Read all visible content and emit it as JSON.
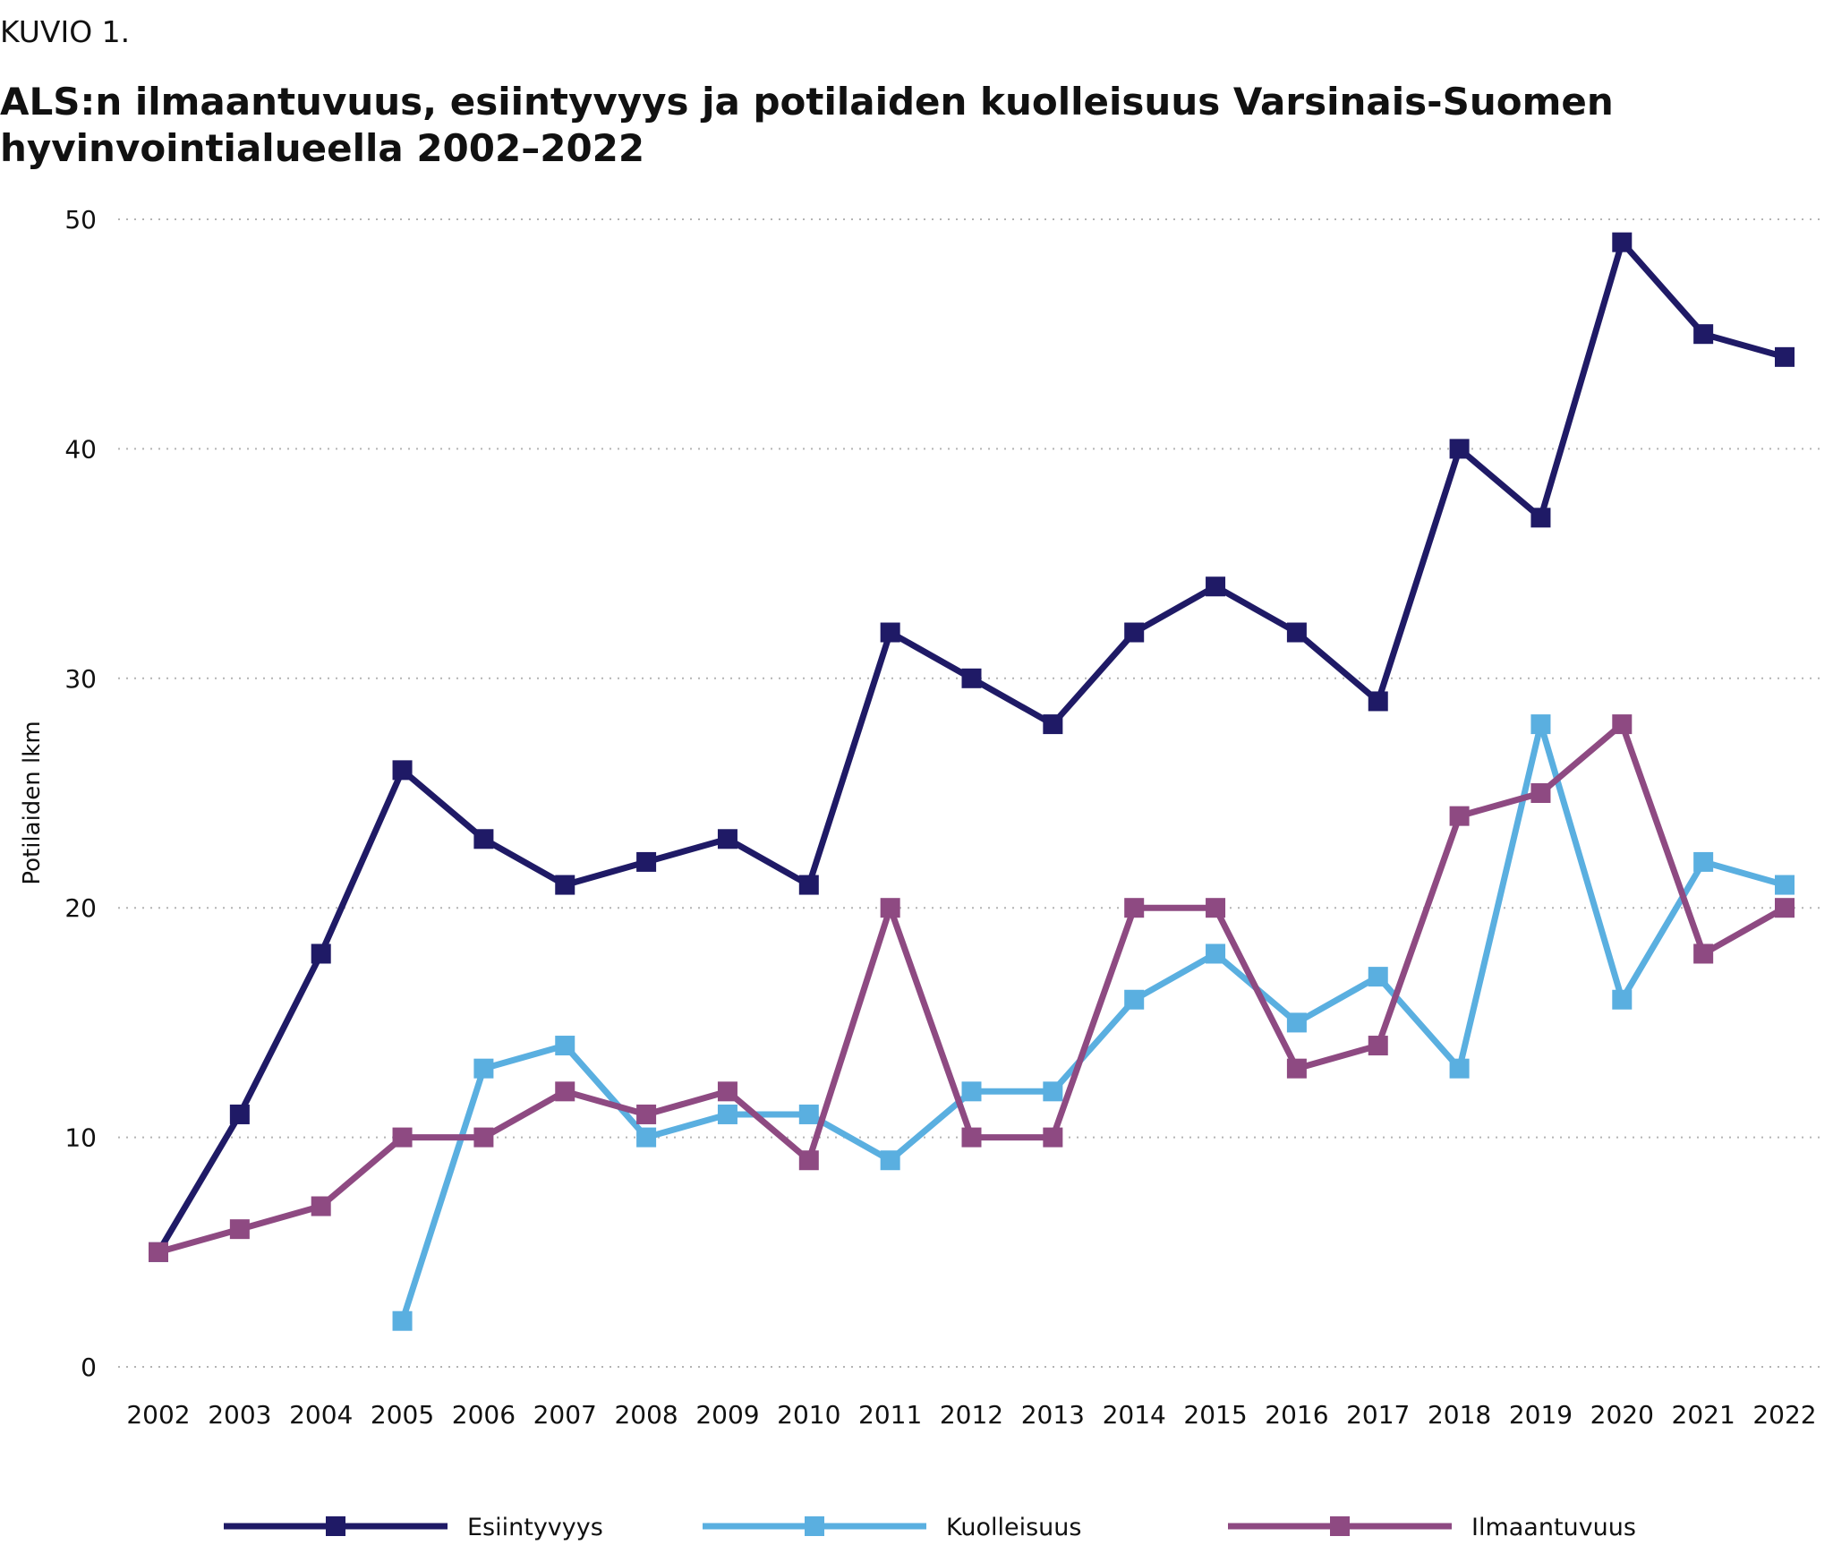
{
  "figure_label": "KUVIO 1.",
  "chart_data": {
    "type": "line",
    "title": "ALS:n ilmaantuvuus, esiintyvyys ja potilaiden kuolleisuus Varsinais-Suomen hyvinvointialueella 2002–2022",
    "xlabel": "",
    "ylabel": "Potilaiden lkm",
    "ylim": [
      0,
      50
    ],
    "yticks": [
      0,
      10,
      20,
      30,
      40,
      50
    ],
    "grid": "horizontal dotted",
    "legend_position": "bottom",
    "categories": [
      "2002",
      "2003",
      "2004",
      "2005",
      "2006",
      "2007",
      "2008",
      "2009",
      "2010",
      "2011",
      "2012",
      "2013",
      "2014",
      "2015",
      "2016",
      "2017",
      "2018",
      "2019",
      "2020",
      "2021",
      "2022"
    ],
    "series": [
      {
        "name": "Esiintyvyys",
        "color": "#1f1a66",
        "values": [
          5,
          11,
          18,
          26,
          23,
          21,
          22,
          23,
          21,
          32,
          30,
          28,
          32,
          34,
          32,
          29,
          40,
          37,
          49,
          45,
          44
        ]
      },
      {
        "name": "Kuolleisuus",
        "color": "#5aafe0",
        "values": [
          null,
          null,
          null,
          2,
          13,
          14,
          10,
          11,
          11,
          9,
          12,
          12,
          16,
          18,
          15,
          17,
          13,
          28,
          16,
          22,
          21
        ]
      },
      {
        "name": "Ilmaantuvuus",
        "color": "#8e4a82",
        "values": [
          5,
          6,
          7,
          10,
          10,
          12,
          11,
          12,
          9,
          20,
          10,
          10,
          20,
          20,
          13,
          14,
          24,
          25,
          28,
          18,
          20
        ]
      }
    ]
  }
}
